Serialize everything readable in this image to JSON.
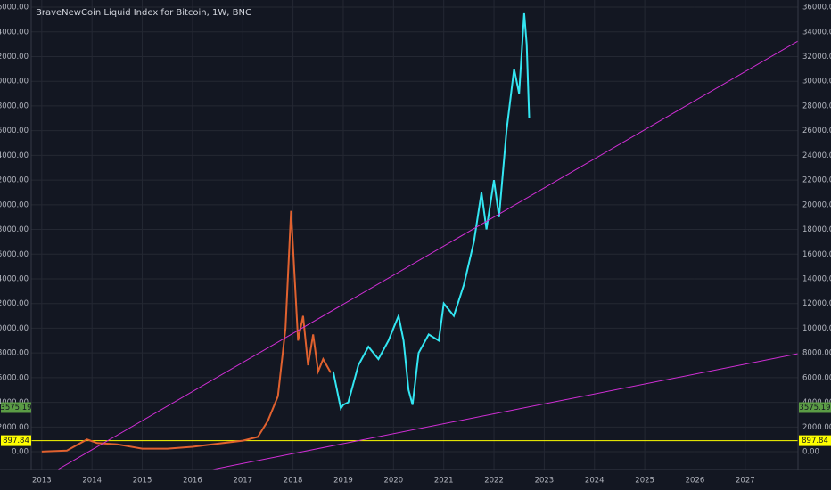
{
  "chart_data": {
    "type": "line",
    "title": "BraveNewCoin Liquid Index for Bitcoin, 1W, BNC",
    "xlim": [
      2012.79,
      2028.05
    ],
    "xticks": [
      2013,
      2014,
      2015,
      2016,
      2017,
      2018,
      2019,
      2020,
      2021,
      2022,
      2023,
      2024,
      2025,
      2026,
      2027
    ],
    "ylim": [
      -1440,
      36580
    ],
    "yticks": [
      {
        "value": 0,
        "label": "0.00"
      },
      {
        "value": 2000,
        "label": "2000.00"
      },
      {
        "value": 4000,
        "label": "4000.00"
      },
      {
        "value": 6000,
        "label": "6000.00"
      },
      {
        "value": 8000,
        "label": "8000.00"
      },
      {
        "value": 10000,
        "label": "10000.00"
      },
      {
        "value": 12000,
        "label": "12000.00"
      },
      {
        "value": 14000,
        "label": "14000.00"
      },
      {
        "value": 16000,
        "label": "16000.00"
      },
      {
        "value": 18000,
        "label": "18000.00"
      },
      {
        "value": 20000,
        "label": "20000.00"
      },
      {
        "value": 22000,
        "label": "22000.00"
      },
      {
        "value": 24000,
        "label": "24000.00"
      },
      {
        "value": 26000,
        "label": "26000.00"
      },
      {
        "value": 28000,
        "label": "28000.00"
      },
      {
        "value": 30000,
        "label": "30000.00"
      },
      {
        "value": 32000,
        "label": "32000.00"
      },
      {
        "value": 34000,
        "label": "34000.00"
      },
      {
        "value": 36000,
        "label": "36000.00"
      }
    ],
    "grid": true,
    "series": [
      {
        "color": "#e0612f",
        "x": [
          2013.0,
          2013.5,
          2013.9,
          2014.1,
          2014.5,
          2015.0,
          2015.5,
          2016.0,
          2016.5,
          2017.0,
          2017.3,
          2017.5,
          2017.7,
          2017.85,
          2017.96,
          2018.1,
          2018.2,
          2018.3,
          2018.4,
          2018.5,
          2018.6,
          2018.75
        ],
        "values": [
          13,
          100,
          1000,
          700,
          600,
          250,
          250,
          400,
          650,
          900,
          1200,
          2500,
          4500,
          10000,
          19500,
          9000,
          11000,
          7000,
          9500,
          6500,
          7500,
          6400
        ]
      },
      {
        "color": "#33e6f2",
        "x": [
          2018.8,
          2018.95,
          2019.0,
          2019.1,
          2019.3,
          2019.5,
          2019.7,
          2019.9,
          2020.0,
          2020.1,
          2020.2,
          2020.3,
          2020.38,
          2020.5,
          2020.7,
          2020.9,
          2021.0,
          2021.2,
          2021.4,
          2021.6,
          2021.75,
          2021.85,
          2022.0,
          2022.1,
          2022.25,
          2022.4,
          2022.5,
          2022.6,
          2022.65,
          2022.7
        ],
        "values": [
          6500,
          3500,
          3800,
          4000,
          7000,
          8500,
          7500,
          9000,
          10000,
          11000,
          9000,
          5000,
          3800,
          8000,
          9500,
          9000,
          12000,
          11000,
          13500,
          17000,
          21000,
          18000,
          22000,
          19000,
          26000,
          31000,
          29000,
          35500,
          33000,
          27000
        ]
      },
      {
        "color": "#d12fd6",
        "x": [
          2013.32,
          2028.05
        ],
        "values": [
          -1440,
          33258
        ]
      },
      {
        "color": "#d12fd6",
        "x": [
          2016.4,
          2028.05
        ],
        "values": [
          -1440,
          7937
        ]
      }
    ],
    "hline": {
      "value": 897.84,
      "color": "#ffff00"
    },
    "markers": [
      {
        "value": 3575.19,
        "color": "#5b9c45"
      },
      {
        "value": 897.84,
        "color": "#ffff00"
      }
    ]
  }
}
